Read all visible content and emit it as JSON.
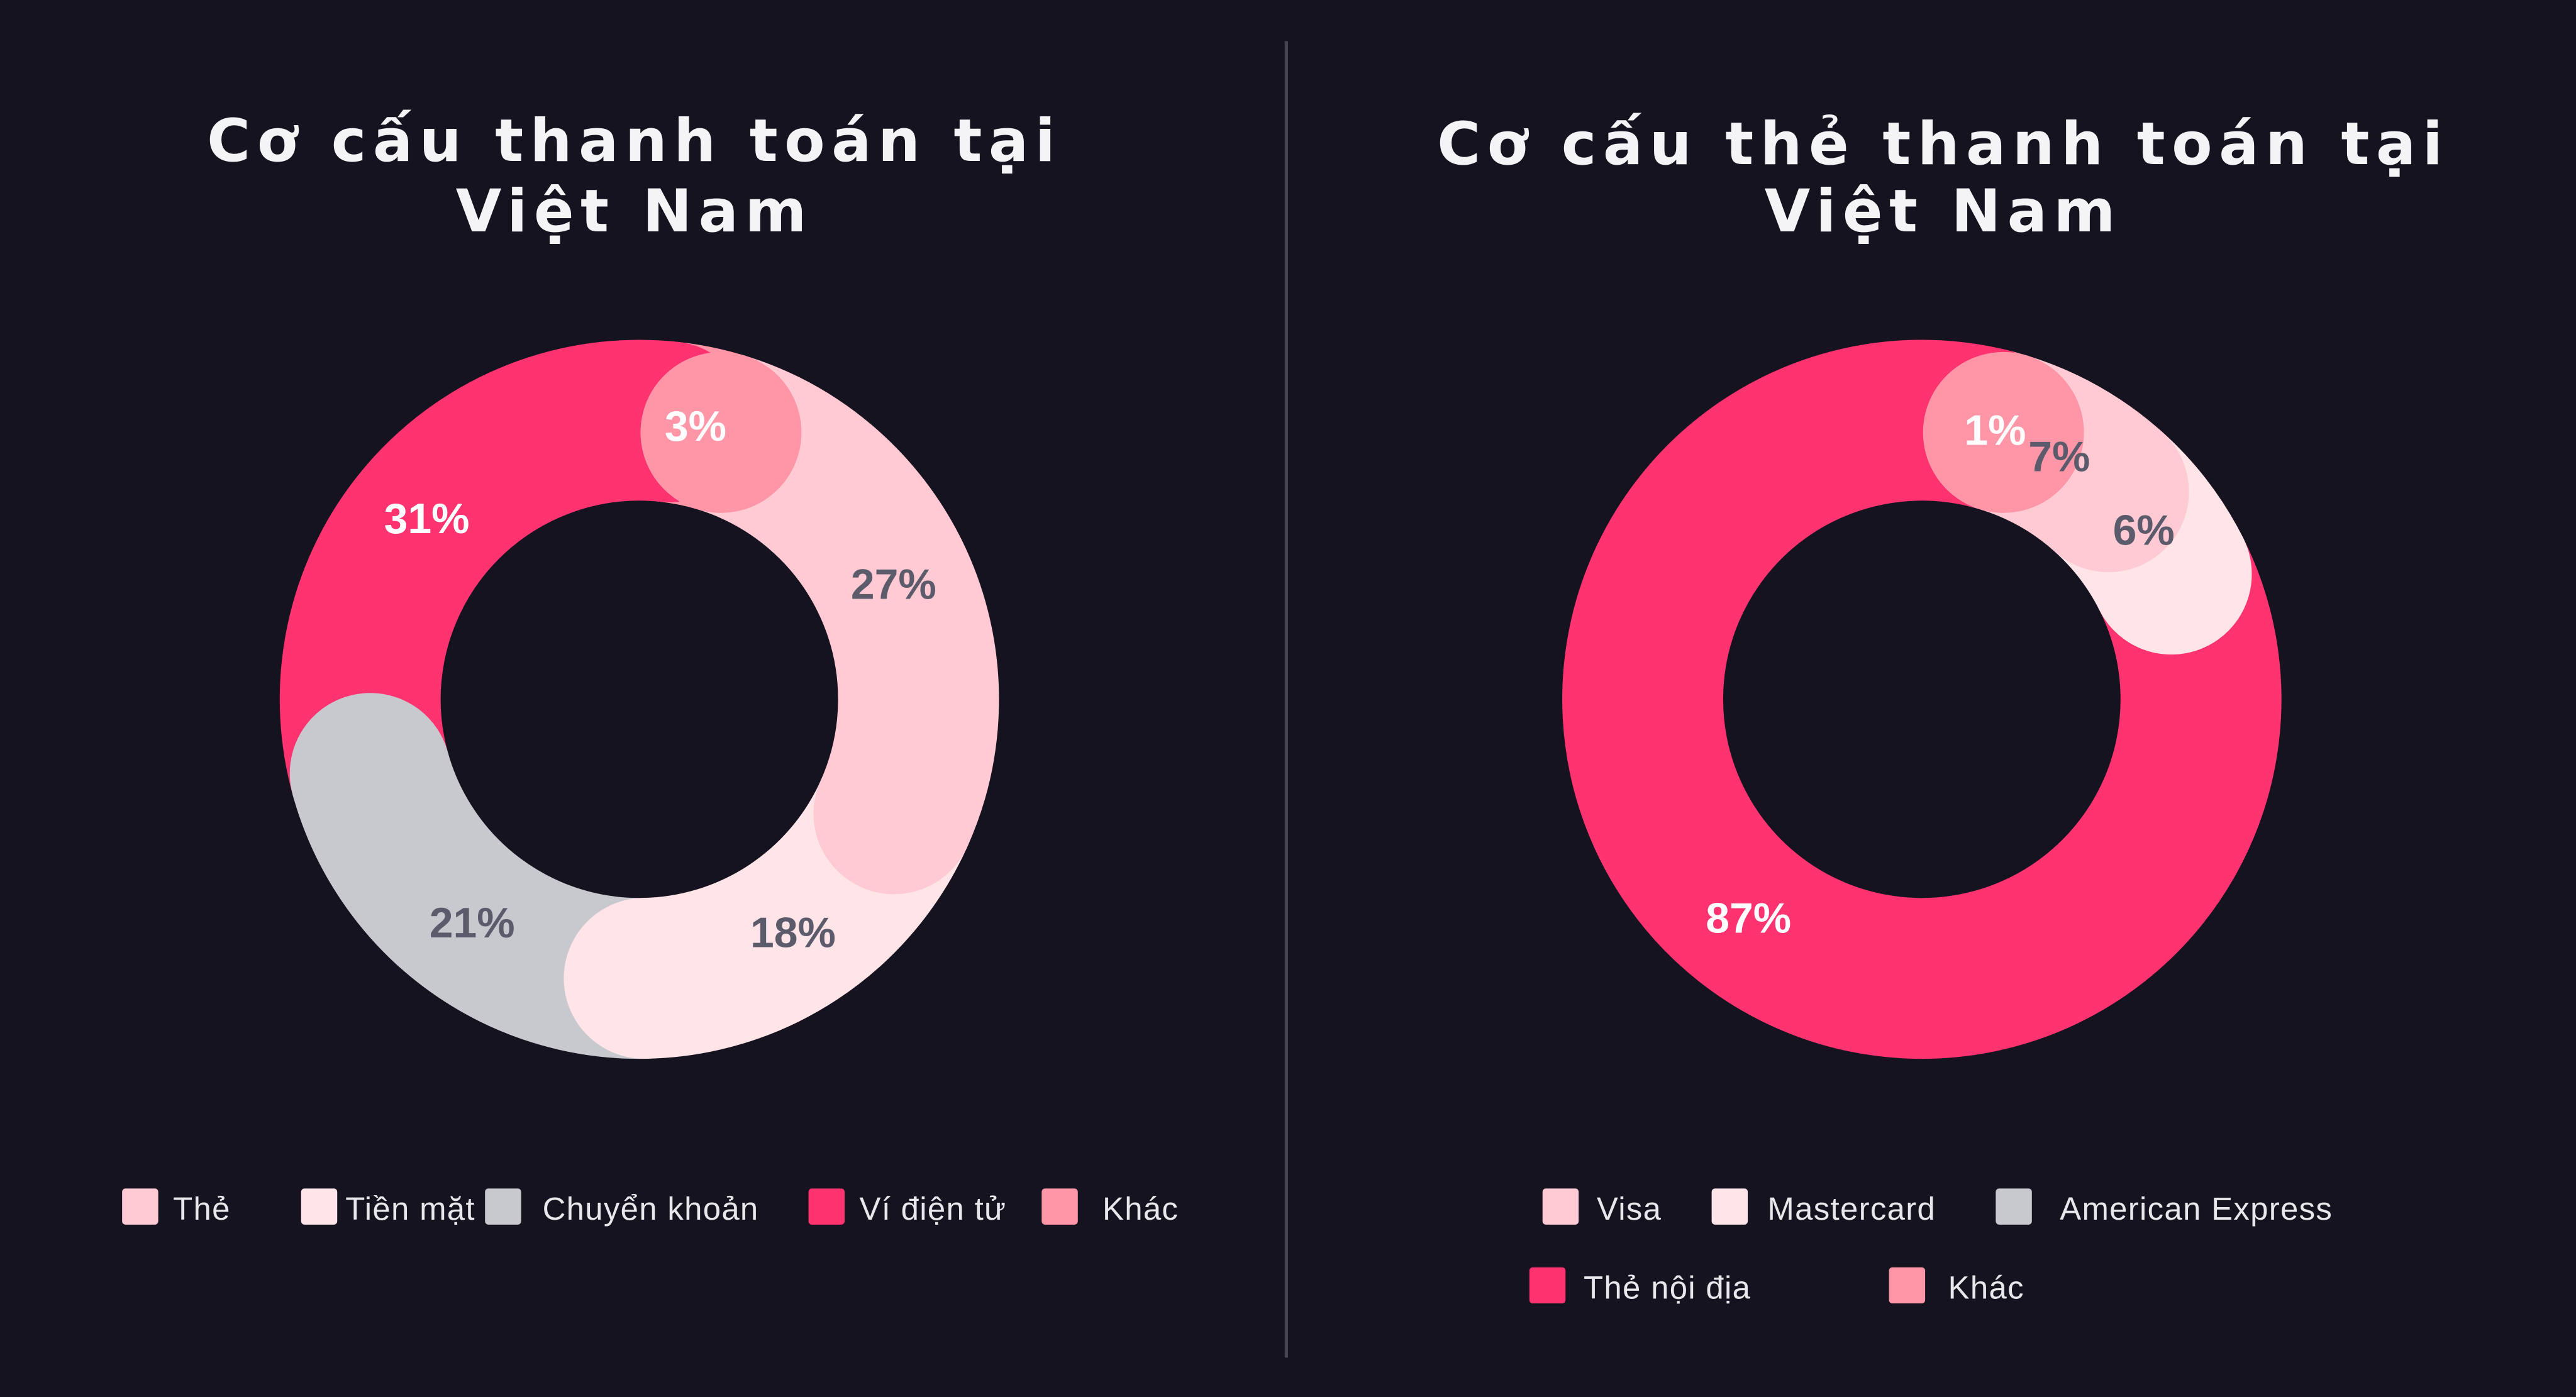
{
  "chart_data": [
    {
      "type": "pie",
      "variant": "donut",
      "title_lines": [
        "Cơ cấu thanh toán tại",
        "Việt Nam"
      ],
      "categories": [
        "Thẻ",
        "Tiền mặt",
        "Chuyển khoản",
        "Ví điện tử",
        "Khác"
      ],
      "values": [
        27,
        18,
        21,
        31,
        3
      ],
      "labels": [
        "27%",
        "18%",
        "21%",
        "31%",
        "3%"
      ],
      "colors": [
        "#ffcad3",
        "#ffe4e8",
        "#c8c9ce",
        "#ff3370",
        "#ff96a8"
      ],
      "label_colors": [
        "#5b5b6b",
        "#5b5b6b",
        "#5b5b6b",
        "#ffffff",
        "#ffffff"
      ],
      "legend_placement": "bottom"
    },
    {
      "type": "pie",
      "variant": "donut",
      "title_lines": [
        "Cơ cấu thẻ thanh toán tại",
        "Việt Nam"
      ],
      "categories": [
        "Visa",
        "Mastercard",
        "American Express",
        "Thẻ nội địa",
        "Khác"
      ],
      "values": [
        7,
        6,
        0,
        87,
        1
      ],
      "labels": [
        "7%",
        "6%",
        "",
        "87%",
        "1%"
      ],
      "colors": [
        "#ffcad3",
        "#ffe4e8",
        "#c8c9ce",
        "#ff3370",
        "#ff96a8"
      ],
      "label_colors": [
        "#5b5b6b",
        "#5b5b6b",
        "#5b5b6b",
        "#ffffff",
        "#ffffff"
      ],
      "legend_placement": "bottom"
    }
  ]
}
